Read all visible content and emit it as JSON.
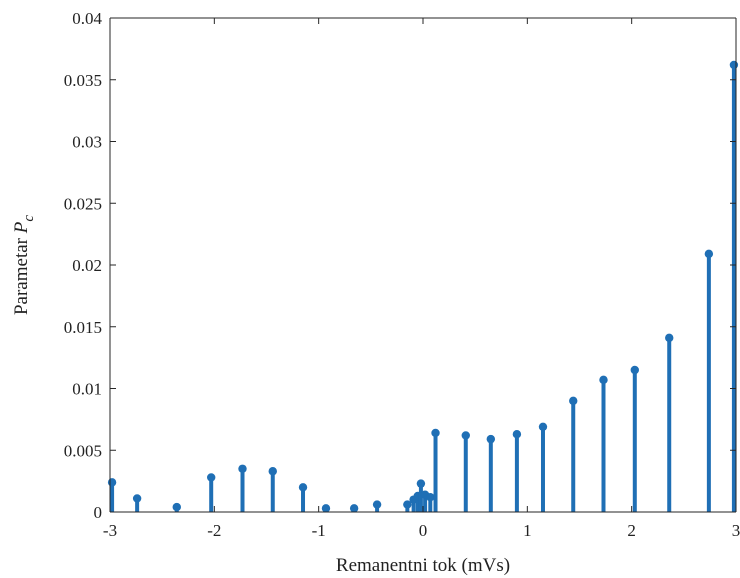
{
  "chart_data": {
    "type": "stem",
    "xlabel": "Remanentni tok (mVs)",
    "ylabel": {
      "prefix": "Parametar ",
      "var": "P",
      "sub": "c"
    },
    "xlim": [
      -3,
      3
    ],
    "ylim": [
      0,
      0.04
    ],
    "xticks": [
      {
        "value": -3,
        "label": "-3"
      },
      {
        "value": -2,
        "label": "-2"
      },
      {
        "value": -1,
        "label": "-1"
      },
      {
        "value": 0,
        "label": "0"
      },
      {
        "value": 1,
        "label": "1"
      },
      {
        "value": 2,
        "label": "2"
      },
      {
        "value": 3,
        "label": "3"
      }
    ],
    "yticks": [
      {
        "value": 0,
        "label": "0"
      },
      {
        "value": 0.005,
        "label": "0.005"
      },
      {
        "value": 0.01,
        "label": "0.01"
      },
      {
        "value": 0.015,
        "label": "0.015"
      },
      {
        "value": 0.02,
        "label": "0.02"
      },
      {
        "value": 0.025,
        "label": "0.025"
      },
      {
        "value": 0.03,
        "label": "0.03"
      },
      {
        "value": 0.035,
        "label": "0.035"
      },
      {
        "value": 0.04,
        "label": "0.04"
      }
    ],
    "grid": false,
    "color": "#1f6fb5",
    "points": [
      {
        "x": -2.98,
        "y": 0.0024
      },
      {
        "x": -2.74,
        "y": 0.0011
      },
      {
        "x": -2.36,
        "y": 0.0004
      },
      {
        "x": -2.03,
        "y": 0.0028
      },
      {
        "x": -1.73,
        "y": 0.0035
      },
      {
        "x": -1.44,
        "y": 0.0033
      },
      {
        "x": -1.15,
        "y": 0.002
      },
      {
        "x": -0.93,
        "y": 0.0003
      },
      {
        "x": -0.66,
        "y": 0.0003
      },
      {
        "x": -0.44,
        "y": 0.0006
      },
      {
        "x": -0.15,
        "y": 0.0006
      },
      {
        "x": -0.09,
        "y": 0.001
      },
      {
        "x": -0.05,
        "y": 0.0013
      },
      {
        "x": -0.02,
        "y": 0.0023
      },
      {
        "x": 0.02,
        "y": 0.0014
      },
      {
        "x": 0.07,
        "y": 0.0012
      },
      {
        "x": 0.12,
        "y": 0.0064
      },
      {
        "x": 0.41,
        "y": 0.0062
      },
      {
        "x": 0.65,
        "y": 0.0059
      },
      {
        "x": 0.9,
        "y": 0.0063
      },
      {
        "x": 1.15,
        "y": 0.0069
      },
      {
        "x": 1.44,
        "y": 0.009
      },
      {
        "x": 1.73,
        "y": 0.0107
      },
      {
        "x": 2.03,
        "y": 0.0115
      },
      {
        "x": 2.36,
        "y": 0.0141
      },
      {
        "x": 2.74,
        "y": 0.0209
      },
      {
        "x": 2.98,
        "y": 0.0362
      }
    ]
  }
}
